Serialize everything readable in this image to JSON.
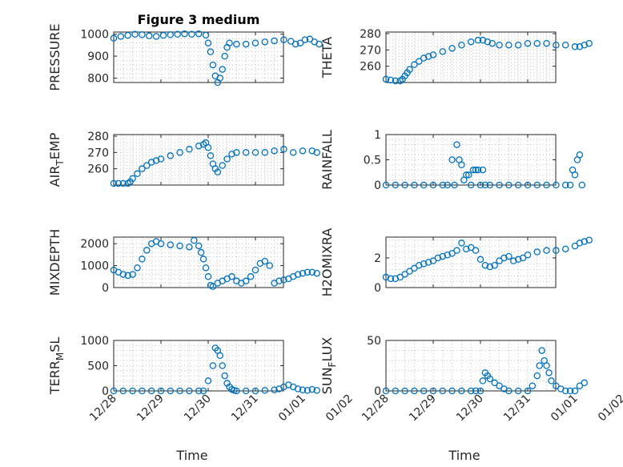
{
  "figure": {
    "title": "Figure 3 medium"
  },
  "chart_data": [
    {
      "type": "scatter",
      "ylabel": "PRESSURE",
      "ylim": [
        780,
        1010
      ],
      "yticks": [
        800,
        900,
        1000
      ],
      "ytick_labels": [
        "800",
        "900",
        "1000"
      ],
      "xlim": [
        0,
        4.7
      ],
      "grid": true,
      "color": "#0072BD",
      "x": [
        0.0,
        0.15,
        0.3,
        0.45,
        0.6,
        0.75,
        0.9,
        1.05,
        1.2,
        1.35,
        1.5,
        1.65,
        1.8,
        1.95,
        2.0,
        2.05,
        2.1,
        2.15,
        2.2,
        2.25,
        2.3,
        2.35,
        2.4,
        2.45,
        2.6,
        2.8,
        3.0,
        3.2,
        3.4,
        3.6,
        3.75,
        3.85,
        3.95,
        4.05,
        4.15,
        4.25,
        4.35
      ],
      "y": [
        982,
        990,
        995,
        1000,
        998,
        993,
        990,
        995,
        998,
        1000,
        1002,
        1000,
        1002,
        996,
        960,
        920,
        860,
        810,
        780,
        800,
        840,
        900,
        940,
        960,
        955,
        955,
        960,
        965,
        970,
        975,
        968,
        955,
        960,
        975,
        978,
        965,
        955
      ]
    },
    {
      "type": "scatter",
      "ylabel": "THETA",
      "ylim": [
        250,
        281
      ],
      "yticks": [
        260,
        270,
        280
      ],
      "ytick_labels": [
        "260",
        "270",
        "280"
      ],
      "xlim": [
        0,
        4.7
      ],
      "grid": true,
      "color": "#0072BD",
      "x": [
        0.0,
        0.1,
        0.2,
        0.3,
        0.35,
        0.4,
        0.45,
        0.5,
        0.6,
        0.7,
        0.8,
        0.9,
        1.0,
        1.2,
        1.4,
        1.6,
        1.8,
        1.95,
        2.05,
        2.15,
        2.25,
        2.4,
        2.6,
        2.8,
        3.0,
        3.2,
        3.4,
        3.6,
        3.8,
        4.0,
        4.1,
        4.2,
        4.3
      ],
      "y": [
        252,
        251.5,
        251,
        251,
        252,
        254,
        256,
        258,
        261,
        263,
        265,
        266,
        267,
        269,
        271,
        273,
        275,
        276,
        276,
        275,
        274,
        273,
        273,
        273,
        274,
        274,
        274,
        273,
        273,
        272,
        272,
        273,
        274
      ]
    },
    {
      "type": "scatter",
      "ylabel": "AIR_TEMP",
      "ylim": [
        250,
        281
      ],
      "yticks": [
        260,
        270,
        280
      ],
      "ytick_labels": [
        "260",
        "270",
        "280"
      ],
      "xlim": [
        0,
        4.7
      ],
      "grid": true,
      "color": "#0072BD",
      "x": [
        0.0,
        0.1,
        0.2,
        0.3,
        0.35,
        0.4,
        0.5,
        0.6,
        0.7,
        0.8,
        0.9,
        1.0,
        1.2,
        1.4,
        1.6,
        1.8,
        1.9,
        1.95,
        2.0,
        2.05,
        2.1,
        2.15,
        2.2,
        2.3,
        2.4,
        2.5,
        2.6,
        2.8,
        3.0,
        3.2,
        3.4,
        3.6,
        3.8,
        4.0,
        4.2,
        4.3
      ],
      "y": [
        251,
        251,
        251,
        251,
        252,
        254,
        257,
        260,
        262,
        264,
        265,
        266,
        268,
        270,
        272,
        274,
        275,
        276,
        273,
        268,
        263,
        260,
        258,
        262,
        266,
        269,
        270,
        270,
        270,
        270,
        271,
        272,
        270,
        271,
        271,
        270
      ]
    },
    {
      "type": "scatter",
      "ylabel": "RAINFALL",
      "ylim": [
        0,
        1
      ],
      "yticks": [
        0,
        0.5,
        1
      ],
      "ytick_labels": [
        "0",
        "0.5",
        "1"
      ],
      "xlim": [
        0,
        4.7
      ],
      "grid": true,
      "color": "#0072BD",
      "x": [
        0.0,
        0.2,
        0.4,
        0.6,
        0.8,
        1.0,
        1.2,
        1.3,
        1.4,
        1.45,
        1.5,
        1.55,
        1.6,
        1.65,
        1.7,
        1.75,
        1.8,
        1.85,
        1.9,
        1.95,
        2.0,
        2.05,
        2.1,
        2.2,
        2.4,
        2.6,
        2.8,
        3.0,
        3.2,
        3.4,
        3.6,
        3.8,
        3.9,
        3.95,
        4.0,
        4.05,
        4.1,
        4.15
      ],
      "y": [
        0,
        0,
        0,
        0,
        0,
        0,
        0,
        0,
        0.5,
        0,
        0.8,
        0.5,
        0.4,
        0.1,
        0.2,
        0.2,
        0,
        0.3,
        0.3,
        0.3,
        0,
        0.3,
        0,
        0,
        0,
        0,
        0,
        0,
        0,
        0,
        0,
        0,
        0,
        0.3,
        0.2,
        0.5,
        0.6,
        0
      ]
    },
    {
      "type": "scatter",
      "ylabel": "MIXDEPTH",
      "ylim": [
        0,
        2300
      ],
      "yticks": [
        0,
        1000,
        2000
      ],
      "ytick_labels": [
        "0",
        "1000",
        "2000"
      ],
      "xlim": [
        0,
        4.7
      ],
      "grid": true,
      "color": "#0072BD",
      "x": [
        0.0,
        0.1,
        0.2,
        0.3,
        0.4,
        0.5,
        0.6,
        0.7,
        0.8,
        0.9,
        1.0,
        1.2,
        1.4,
        1.6,
        1.7,
        1.8,
        1.85,
        1.9,
        1.95,
        2.0,
        2.05,
        2.1,
        2.2,
        2.3,
        2.4,
        2.5,
        2.6,
        2.7,
        2.8,
        2.9,
        3.0,
        3.1,
        3.2,
        3.3,
        3.4,
        3.5,
        3.6,
        3.7,
        3.8,
        3.9,
        4.0,
        4.1,
        4.2,
        4.3
      ],
      "y": [
        800,
        700,
        600,
        550,
        600,
        900,
        1300,
        1700,
        2000,
        2100,
        2000,
        1950,
        1900,
        1850,
        2150,
        1900,
        1600,
        1300,
        900,
        500,
        100,
        50,
        200,
        300,
        400,
        500,
        300,
        200,
        300,
        500,
        800,
        1100,
        1200,
        1000,
        200,
        300,
        350,
        400,
        500,
        600,
        650,
        700,
        700,
        650
      ]
    },
    {
      "type": "scatter",
      "ylabel": "H2OMIXRA",
      "ylim": [
        0,
        3.4
      ],
      "yticks": [
        0,
        2
      ],
      "ytick_labels": [
        "0",
        "2"
      ],
      "xlim": [
        0,
        4.7
      ],
      "grid": true,
      "color": "#0072BD",
      "x": [
        0.0,
        0.1,
        0.2,
        0.3,
        0.4,
        0.5,
        0.6,
        0.7,
        0.8,
        0.9,
        1.0,
        1.1,
        1.2,
        1.3,
        1.4,
        1.5,
        1.6,
        1.7,
        1.8,
        1.9,
        2.0,
        2.1,
        2.2,
        2.3,
        2.4,
        2.5,
        2.6,
        2.7,
        2.8,
        2.9,
        3.0,
        3.2,
        3.4,
        3.6,
        3.8,
        4.0,
        4.1,
        4.2,
        4.3
      ],
      "y": [
        0.7,
        0.6,
        0.6,
        0.7,
        0.9,
        1.1,
        1.3,
        1.5,
        1.6,
        1.7,
        1.8,
        2.0,
        2.1,
        2.2,
        2.3,
        2.5,
        3.0,
        2.6,
        2.7,
        2.5,
        1.9,
        1.5,
        1.4,
        1.5,
        1.8,
        2.0,
        2.1,
        1.8,
        1.9,
        2.0,
        2.2,
        2.4,
        2.5,
        2.5,
        2.6,
        2.8,
        3.0,
        3.1,
        3.2
      ]
    },
    {
      "type": "scatter",
      "ylabel": "TERR_MSL",
      "ylim": [
        0,
        1000
      ],
      "yticks": [
        0,
        500,
        1000
      ],
      "ytick_labels": [
        "0",
        "500",
        "1000"
      ],
      "xlim": [
        0,
        4.7
      ],
      "grid": true,
      "color": "#0072BD",
      "x": [
        0.0,
        0.2,
        0.4,
        0.6,
        0.8,
        1.0,
        1.2,
        1.4,
        1.6,
        1.8,
        1.9,
        2.0,
        2.1,
        2.15,
        2.2,
        2.25,
        2.3,
        2.35,
        2.4,
        2.45,
        2.5,
        2.55,
        2.6,
        2.8,
        3.0,
        3.2,
        3.4,
        3.5,
        3.6,
        3.7,
        3.8,
        3.9,
        4.0,
        4.1,
        4.2,
        4.3
      ],
      "y": [
        0,
        0,
        0,
        0,
        0,
        0,
        0,
        0,
        0,
        0,
        0,
        200,
        500,
        850,
        800,
        700,
        500,
        300,
        150,
        80,
        30,
        10,
        0,
        0,
        0,
        10,
        20,
        40,
        80,
        120,
        80,
        40,
        20,
        10,
        30,
        10
      ]
    },
    {
      "type": "scatter",
      "ylabel": "SUN_FLUX",
      "ylim": [
        0,
        50
      ],
      "yticks": [
        0,
        50
      ],
      "ytick_labels": [
        "0",
        "50"
      ],
      "xlim": [
        0,
        4.7
      ],
      "grid": true,
      "color": "#0072BD",
      "x": [
        0.0,
        0.2,
        0.4,
        0.6,
        0.8,
        1.0,
        1.2,
        1.4,
        1.6,
        1.8,
        1.9,
        2.0,
        2.05,
        2.1,
        2.15,
        2.2,
        2.3,
        2.4,
        2.5,
        2.6,
        2.8,
        3.0,
        3.1,
        3.2,
        3.25,
        3.3,
        3.35,
        3.4,
        3.45,
        3.5,
        3.6,
        3.7,
        3.8,
        3.9,
        4.0,
        4.1,
        4.2
      ],
      "y": [
        0,
        0,
        0,
        0,
        0,
        0,
        0,
        0,
        0,
        0,
        0,
        0,
        10,
        18,
        15,
        12,
        8,
        5,
        2,
        0,
        0,
        0,
        5,
        15,
        25,
        40,
        30,
        25,
        18,
        10,
        5,
        2,
        0,
        0,
        0,
        5,
        8
      ]
    }
  ],
  "x_axis": {
    "label": "Time",
    "ticks": [
      0,
      1,
      2,
      3,
      4,
      5
    ],
    "tick_labels": [
      "12/28",
      "12/29",
      "12/30",
      "12/31",
      "01/01",
      "01/02"
    ]
  }
}
